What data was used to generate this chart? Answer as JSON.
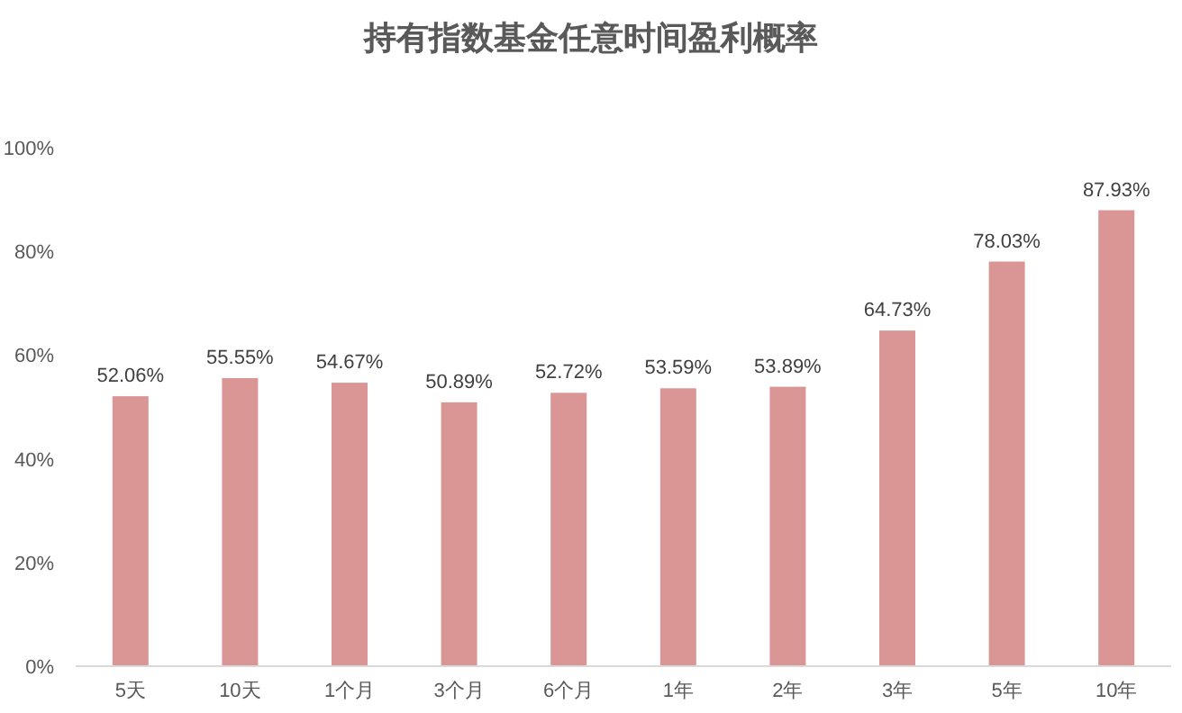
{
  "chart_data": {
    "type": "bar",
    "title": "持有指数基金任意时间盈利概率",
    "categories": [
      "5天",
      "10天",
      "1个月",
      "3个月",
      "6个月",
      "1年",
      "2年",
      "3年",
      "5年",
      "10年"
    ],
    "values": [
      52.06,
      55.55,
      54.67,
      50.89,
      52.72,
      53.59,
      53.89,
      64.73,
      78.03,
      87.93
    ],
    "value_labels": [
      "52.06%",
      "55.55%",
      "54.67%",
      "50.89%",
      "52.72%",
      "53.59%",
      "53.89%",
      "64.73%",
      "78.03%",
      "87.93%"
    ],
    "color": "#da9694",
    "ylim": [
      0,
      100
    ],
    "yticks": [
      {
        "value": 0,
        "label": "0%"
      },
      {
        "value": 20,
        "label": "20%"
      },
      {
        "value": 40,
        "label": "40%"
      },
      {
        "value": 60,
        "label": "60%"
      },
      {
        "value": 80,
        "label": "80%"
      },
      {
        "value": 100,
        "label": "100%"
      }
    ],
    "grid": false
  }
}
